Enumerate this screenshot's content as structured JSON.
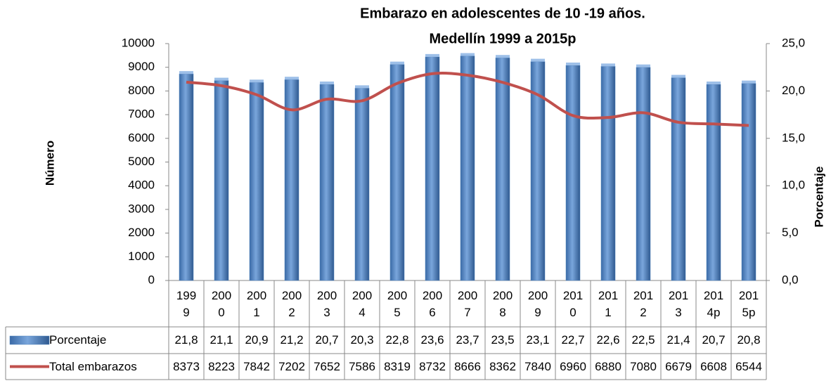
{
  "chart_data": {
    "type": "bar_line",
    "title": [
      "Embarazo en adolescentes de 10 -19 años.",
      "Medellín 1999 a 2015p"
    ],
    "ylabel": "Número",
    "y2label": "Porcentaje",
    "categories": [
      "1999",
      "2000",
      "2001",
      "2002",
      "2003",
      "2004",
      "2005",
      "2006",
      "2007",
      "2008",
      "2009",
      "2010",
      "2011",
      "2012",
      "2013",
      "2014p",
      "2015p"
    ],
    "ylim": [
      0,
      10000
    ],
    "yticks": [
      0,
      1000,
      2000,
      3000,
      4000,
      5000,
      6000,
      7000,
      8000,
      9000,
      10000
    ],
    "y2lim": [
      0,
      25
    ],
    "y2ticks": [
      {
        "value": 0,
        "label": "0,0"
      },
      {
        "value": 5,
        "label": "5,0"
      },
      {
        "value": 10,
        "label": "10,0"
      },
      {
        "value": 15,
        "label": "15,0"
      },
      {
        "value": 20,
        "label": "20,0"
      },
      {
        "value": 25,
        "label": "25,0"
      }
    ],
    "series": [
      {
        "name": "Porcentaje",
        "type": "bar",
        "axis": "y2",
        "color": "#4f81bd",
        "values": [
          21.8,
          21.1,
          20.9,
          21.2,
          20.7,
          20.3,
          22.8,
          23.6,
          23.7,
          23.5,
          23.1,
          22.7,
          22.6,
          22.5,
          21.4,
          20.7,
          20.8
        ],
        "value_labels": [
          "21,8",
          "21,1",
          "20,9",
          "21,2",
          "20,7",
          "20,3",
          "22,8",
          "23,6",
          "23,7",
          "23,5",
          "23,1",
          "22,7",
          "22,6",
          "22,5",
          "21,4",
          "20,7",
          "20,8"
        ]
      },
      {
        "name": "Total embarazos",
        "type": "line",
        "color": "#c0504d",
        "values": [
          8373,
          8223,
          7842,
          7202,
          7652,
          7586,
          8319,
          8732,
          8666,
          8362,
          7840,
          6960,
          6880,
          7080,
          6679,
          6608,
          6544
        ]
      }
    ]
  }
}
